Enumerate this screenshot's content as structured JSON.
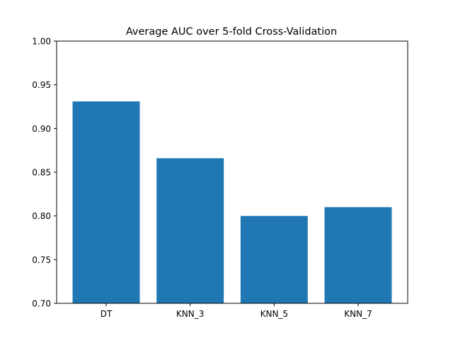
{
  "chart_data": {
    "type": "bar",
    "title": "Average AUC over 5-fold Cross-Validation",
    "xlabel": "",
    "ylabel": "",
    "categories": [
      "DT",
      "KNN_3",
      "KNN_5",
      "KNN_7"
    ],
    "values": [
      0.931,
      0.866,
      0.8,
      0.81
    ],
    "ylim": [
      0.7,
      1.0
    ],
    "yticks": [
      0.7,
      0.75,
      0.8,
      0.85,
      0.9,
      0.95,
      1.0
    ],
    "ytick_labels": [
      "0.70",
      "0.75",
      "0.80",
      "0.85",
      "0.90",
      "0.95",
      "1.00"
    ],
    "bar_color": "#1f77b4",
    "grid": false,
    "legend": "none"
  }
}
